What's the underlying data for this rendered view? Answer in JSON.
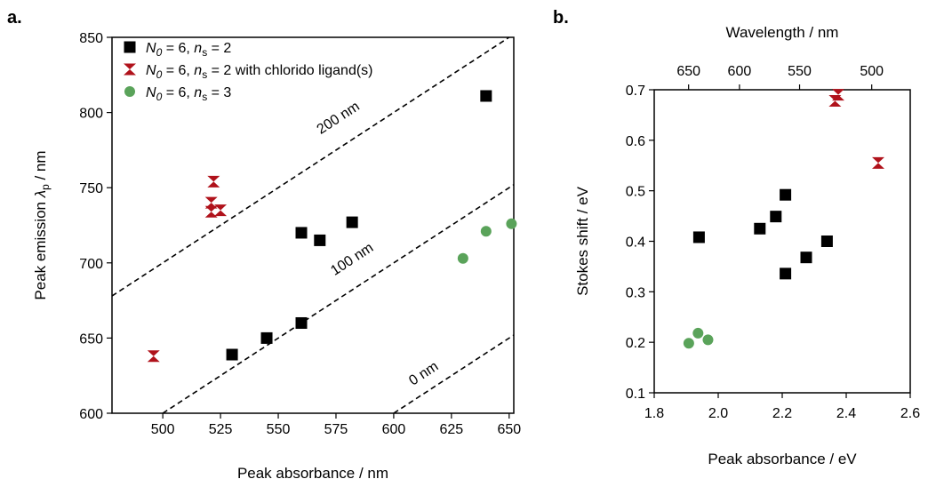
{
  "chart_data": [
    {
      "panel_label": "a.",
      "type": "scatter",
      "xlabel": "Peak absorbance / nm",
      "ylabel": "Peak emission λp / nm",
      "xlim": [
        478,
        652
      ],
      "ylim": [
        600,
        850
      ],
      "xticks": [
        500,
        525,
        550,
        575,
        600,
        625,
        650
      ],
      "yticks": [
        600,
        650,
        700,
        750,
        800,
        850
      ],
      "legend_position": "top-left",
      "series": [
        {
          "name": "N0 = 6, ns = 2",
          "color": "#000000",
          "marker": "square",
          "points": [
            [
              530,
              639
            ],
            [
              545,
              650
            ],
            [
              560,
              660
            ],
            [
              560,
              720
            ],
            [
              568,
              715
            ],
            [
              582,
              727
            ],
            [
              640,
              811
            ]
          ]
        },
        {
          "name": "N0 = 6, ns = 2 with chlorido ligand(s)",
          "color": "#b0121b",
          "marker": "hourglass",
          "points": [
            [
              496,
              638
            ],
            [
              522,
              754
            ],
            [
              521,
              740
            ],
            [
              521,
              734
            ],
            [
              525,
              735
            ]
          ]
        },
        {
          "name": "N0 = 6, ns = 3",
          "color": "#5aa35a",
          "marker": "circle",
          "points": [
            [
              630,
              703
            ],
            [
              640,
              721
            ],
            [
              651,
              726
            ]
          ]
        }
      ],
      "reference_lines": [
        {
          "label": "0 nm",
          "offset": 0
        },
        {
          "label": "100 nm",
          "offset": 100
        },
        {
          "label": "200 nm",
          "offset": 200
        }
      ],
      "grid": false
    },
    {
      "panel_label": "b.",
      "type": "scatter",
      "xlabel": "Peak absorbance / eV",
      "ylabel": "Stokes shift / eV",
      "top_xlabel": "Wavelength / nm",
      "xlim": [
        1.8,
        2.6
      ],
      "ylim": [
        0.1,
        0.7
      ],
      "xticks": [
        1.8,
        2.0,
        2.2,
        2.4,
        2.6
      ],
      "yticks": [
        0.1,
        0.2,
        0.3,
        0.4,
        0.5,
        0.6,
        0.7
      ],
      "top_xticks_nm": [
        650,
        600,
        550,
        500
      ],
      "grid": false,
      "series": [
        {
          "color": "#000000",
          "marker": "square",
          "points": [
            [
              1.94,
              0.408
            ],
            [
              2.13,
              0.425
            ],
            [
              2.18,
              0.449
            ],
            [
              2.21,
              0.492
            ],
            [
              2.21,
              0.336
            ],
            [
              2.275,
              0.368
            ],
            [
              2.34,
              0.4
            ]
          ]
        },
        {
          "color": "#b0121b",
          "marker": "hourglass",
          "points": [
            [
              2.365,
              0.678
            ],
            [
              2.375,
              0.69
            ],
            [
              2.5,
              0.555
            ]
          ]
        },
        {
          "color": "#5aa35a",
          "marker": "circle",
          "points": [
            [
              1.908,
              0.198
            ],
            [
              1.937,
              0.218
            ],
            [
              1.968,
              0.205
            ]
          ]
        }
      ]
    }
  ],
  "legend_entries": [
    {
      "parts": [
        {
          "text": "N",
          "style": "italic"
        },
        {
          "text": "0",
          "style": "italic-sub"
        },
        {
          "text": " = 6, ",
          "style": "normal"
        },
        {
          "text": "n",
          "style": "italic"
        },
        {
          "text": "s",
          "style": "sub"
        },
        {
          "text": " = 2",
          "style": "normal"
        }
      ]
    },
    {
      "parts": [
        {
          "text": "N",
          "style": "italic"
        },
        {
          "text": "0",
          "style": "italic-sub"
        },
        {
          "text": " = 6, ",
          "style": "normal"
        },
        {
          "text": "n",
          "style": "italic"
        },
        {
          "text": "s",
          "style": "sub"
        },
        {
          "text": " = 2 with chlorido ligand(s)",
          "style": "normal"
        }
      ]
    },
    {
      "parts": [
        {
          "text": "N",
          "style": "italic"
        },
        {
          "text": "0",
          "style": "italic-sub"
        },
        {
          "text": " = 6, ",
          "style": "normal"
        },
        {
          "text": "n",
          "style": "italic"
        },
        {
          "text": "s",
          "style": "sub"
        },
        {
          "text": " = 3",
          "style": "normal"
        }
      ]
    }
  ],
  "ylabel_a_parts": [
    {
      "text": "Peak emission ",
      "style": "normal"
    },
    {
      "text": "λ",
      "style": "italic"
    },
    {
      "text": "p",
      "style": "sub"
    },
    {
      "text": " / nm",
      "style": "normal"
    }
  ]
}
